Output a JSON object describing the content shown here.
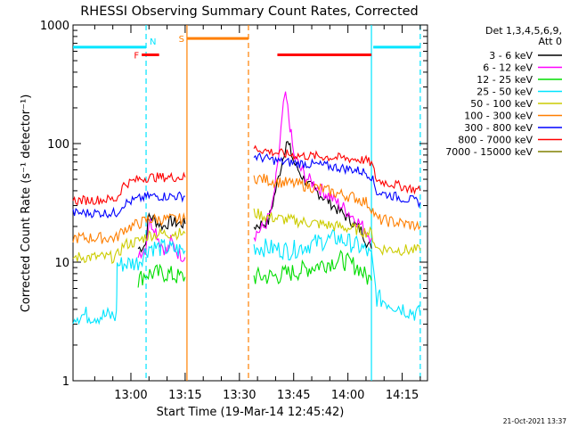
{
  "chart_data": {
    "type": "line",
    "title": "RHESSI Observing Summary Count Rates, Corrected",
    "xlabel": "Start Time (19-Mar-14 12:45:42)",
    "ylabel": "Corrected Count Rate (s⁻¹ detector⁻¹)",
    "ylog": true,
    "ylim": [
      1,
      1000
    ],
    "xlim_min": [
      -8,
      90
    ],
    "x_unit": "minutes after 12:52",
    "x_ticks": [
      {
        "t": 8,
        "label": "13:00"
      },
      {
        "t": 23,
        "label": "13:15"
      },
      {
        "t": 38,
        "label": "13:30"
      },
      {
        "t": 53,
        "label": "13:45"
      },
      {
        "t": 68,
        "label": "14:00"
      },
      {
        "t": 83,
        "label": "14:15"
      }
    ],
    "y_ticks": [
      {
        "v": 1,
        "label": "1"
      },
      {
        "v": 10,
        "label": "10"
      },
      {
        "v": 100,
        "label": "100"
      },
      {
        "v": 1000,
        "label": "1000"
      }
    ],
    "legend_header": [
      "Det 1,3,4,5,6,9,",
      "Att 0"
    ],
    "footer_date": "21-Oct-2021 13:37",
    "flags": [
      {
        "label": "N",
        "color": "#00e5ff",
        "y": 650,
        "segments": [
          [
            -8,
            12.2
          ],
          [
            75,
            88
          ]
        ]
      },
      {
        "label": "F",
        "color": "#ff0000",
        "y": 560,
        "segments": [
          [
            11,
            15.8
          ],
          [
            48.5,
            74.5
          ]
        ]
      },
      {
        "label": "S",
        "color": "#ff7f00",
        "y": 770,
        "segments": [
          [
            23.5,
            40.5
          ]
        ]
      }
    ],
    "vlines": [
      {
        "t": 12.2,
        "color": "#00e5ff",
        "style": "dashed"
      },
      {
        "t": 23.5,
        "color": "#ff7f00",
        "style": "solid"
      },
      {
        "t": 40.5,
        "color": "#ff7f00",
        "style": "dashed"
      },
      {
        "t": 74.5,
        "color": "#00e5ff",
        "style": "solid"
      },
      {
        "t": 88,
        "color": "#00e5ff",
        "style": "dashed"
      }
    ],
    "series": [
      {
        "name": "3 - 6 keV",
        "color": "#000000",
        "noise": 0.05,
        "segments": [
          [
            [
              10,
              13
            ],
            [
              12,
              14
            ],
            [
              13,
              25
            ],
            [
              15,
              22
            ],
            [
              17,
              20
            ],
            [
              19,
              22
            ],
            [
              22,
              21
            ],
            [
              23,
              21
            ]
          ],
          [
            [
              42,
              20
            ],
            [
              44,
              21
            ],
            [
              46,
              22
            ],
            [
              48,
              40
            ],
            [
              50,
              75
            ],
            [
              51,
              105
            ],
            [
              52,
              90
            ],
            [
              53,
              70
            ],
            [
              55,
              55
            ],
            [
              57,
              45
            ],
            [
              60,
              38
            ],
            [
              63,
              32
            ],
            [
              65,
              28
            ],
            [
              67,
              25
            ],
            [
              69,
              22
            ],
            [
              72,
              18
            ],
            [
              73.5,
              14
            ],
            [
              74.5,
              13
            ]
          ]
        ]
      },
      {
        "name": "6 - 12 keV",
        "color": "#ff00ff",
        "noise": 0.06,
        "segments": [
          [
            [
              10,
              12
            ],
            [
              12,
              13
            ],
            [
              13,
              22
            ],
            [
              14.5,
              20
            ],
            [
              16,
              15
            ],
            [
              18,
              12
            ],
            [
              19,
              15
            ],
            [
              21,
              12
            ],
            [
              23,
              11
            ]
          ],
          [
            [
              42,
              17
            ],
            [
              45,
              20
            ],
            [
              47,
              28
            ],
            [
              48.5,
              60
            ],
            [
              49.5,
              130
            ],
            [
              50.5,
              250
            ],
            [
              51,
              230
            ],
            [
              52,
              140
            ],
            [
              53,
              80
            ],
            [
              55,
              60
            ],
            [
              57,
              50
            ],
            [
              60,
              42
            ],
            [
              63,
              36
            ],
            [
              66,
              30
            ],
            [
              69,
              25
            ],
            [
              72,
              20
            ],
            [
              74.5,
              16
            ]
          ]
        ]
      },
      {
        "name": "12 - 25 keV",
        "color": "#00dd00",
        "noise": 0.08,
        "segments": [
          [
            [
              10,
              7
            ],
            [
              12,
              8
            ],
            [
              14,
              8
            ],
            [
              18,
              8
            ],
            [
              21,
              7.5
            ],
            [
              23,
              7.5
            ]
          ],
          [
            [
              42,
              7.5
            ],
            [
              48,
              7.6
            ],
            [
              55,
              8.5
            ],
            [
              60,
              9.5
            ],
            [
              66,
              10.5
            ],
            [
              71,
              9
            ],
            [
              73,
              7.5
            ],
            [
              74.5,
              7
            ]
          ]
        ]
      },
      {
        "name": "25 - 50 keV",
        "color": "#00e5ff",
        "noise": 0.08,
        "segments": [
          [
            [
              -8,
              3.6
            ],
            [
              4,
              3.5
            ],
            [
              4.2,
              9.5
            ],
            [
              10,
              10
            ],
            [
              13,
              13.5
            ],
            [
              18,
              13
            ],
            [
              23,
              12.5
            ]
          ],
          [
            [
              42,
              13.5
            ],
            [
              48,
              13
            ],
            [
              52,
              12.5
            ],
            [
              57,
              14
            ],
            [
              61,
              15
            ],
            [
              65,
              16
            ],
            [
              70,
              14
            ],
            [
              73,
              12.5
            ],
            [
              74.5,
              11
            ],
            [
              76,
              5
            ],
            [
              88,
              3.6
            ]
          ]
        ]
      },
      {
        "name": "50 - 100 keV",
        "color": "#cccc00",
        "noise": 0.05,
        "segments": [
          [
            [
              -8,
              11
            ],
            [
              4,
              11
            ],
            [
              6,
              14
            ],
            [
              10,
              15
            ],
            [
              13,
              17
            ],
            [
              18,
              17.5
            ],
            [
              23,
              17.5
            ]
          ],
          [
            [
              42,
              26
            ],
            [
              46,
              24
            ],
            [
              50,
              23
            ],
            [
              55,
              22
            ],
            [
              60,
              21
            ],
            [
              65,
              20
            ],
            [
              70,
              19
            ],
            [
              73,
              18
            ],
            [
              74.5,
              17.5
            ],
            [
              76,
              13
            ],
            [
              88,
              12.5
            ]
          ]
        ]
      },
      {
        "name": "100 - 300 keV",
        "color": "#ff7f00",
        "noise": 0.05,
        "segments": [
          [
            [
              -8,
              16
            ],
            [
              4,
              16
            ],
            [
              6,
              19
            ],
            [
              10,
              21
            ],
            [
              13,
              23
            ],
            [
              18,
              23
            ],
            [
              23,
              23
            ]
          ],
          [
            [
              42,
              52
            ],
            [
              46,
              49
            ],
            [
              50,
              47
            ],
            [
              55,
              45
            ],
            [
              60,
              42
            ],
            [
              65,
              38
            ],
            [
              70,
              35
            ],
            [
              73,
              32
            ],
            [
              74.5,
              29
            ],
            [
              76,
              23
            ],
            [
              88,
              20
            ]
          ]
        ]
      },
      {
        "name": "300 - 800 keV",
        "color": "#0000ff",
        "noise": 0.04,
        "segments": [
          [
            [
              -8,
              26
            ],
            [
              4,
              26
            ],
            [
              6,
              31
            ],
            [
              10,
              34
            ],
            [
              13,
              36
            ],
            [
              18,
              36
            ],
            [
              23,
              36
            ]
          ],
          [
            [
              42,
              78
            ],
            [
              46,
              74
            ],
            [
              50,
              70
            ],
            [
              55,
              68
            ],
            [
              60,
              66
            ],
            [
              65,
              63
            ],
            [
              70,
              60
            ],
            [
              73,
              57
            ],
            [
              74.5,
              53
            ],
            [
              76,
              39
            ],
            [
              88,
              32
            ]
          ]
        ]
      },
      {
        "name": "800 - 7000 keV",
        "color": "#ff0000",
        "noise": 0.04,
        "segments": [
          [
            [
              -8,
              33
            ],
            [
              4,
              34
            ],
            [
              6,
              45
            ],
            [
              10,
              50
            ],
            [
              13,
              52
            ],
            [
              18,
              52
            ],
            [
              23,
              52
            ]
          ],
          [
            [
              42,
              92
            ],
            [
              46,
              86
            ],
            [
              50,
              82
            ],
            [
              55,
              79
            ],
            [
              60,
              78
            ],
            [
              65,
              76
            ],
            [
              70,
              74
            ],
            [
              73,
              72
            ],
            [
              74.5,
              68
            ],
            [
              76,
              49
            ],
            [
              88,
              40
            ]
          ]
        ]
      },
      {
        "name": "7000 - 15000 keV",
        "color": "#808000",
        "noise": 0.04,
        "segments": []
      }
    ]
  }
}
